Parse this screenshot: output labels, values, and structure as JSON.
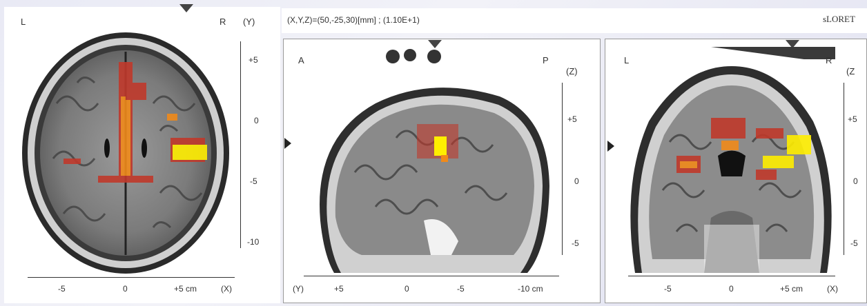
{
  "header": {
    "coords": "(X,Y,Z)=(50,-25,30)[mm] ; (1.10E+1)",
    "app": "sLORET"
  },
  "axial": {
    "left": "L",
    "right": "R",
    "axis": "(Y)",
    "yticks": [
      "+5",
      "0",
      "-5",
      "-10"
    ],
    "xticks": [
      "-5",
      "0",
      "+5 cm",
      "(X)"
    ]
  },
  "sagittal": {
    "front": "A",
    "back": "P",
    "axis": "(Z)",
    "zticks": [
      "+5",
      "0",
      "-5"
    ],
    "yaxis": "(Y)",
    "yticks": [
      "+5",
      "0",
      "-5",
      "-10 cm"
    ]
  },
  "coronal": {
    "left": "L",
    "right": "R",
    "axis": "(Z",
    "zticks": [
      "+5",
      "0",
      "-5"
    ],
    "xticks": [
      "-5",
      "0",
      "+5 cm",
      "(X)"
    ]
  },
  "colors": {
    "activation_hot": "#ffee00",
    "activation_warm": "#f08a1a",
    "activation_low": "#c0392b",
    "tissue": "#8a8a8a"
  }
}
